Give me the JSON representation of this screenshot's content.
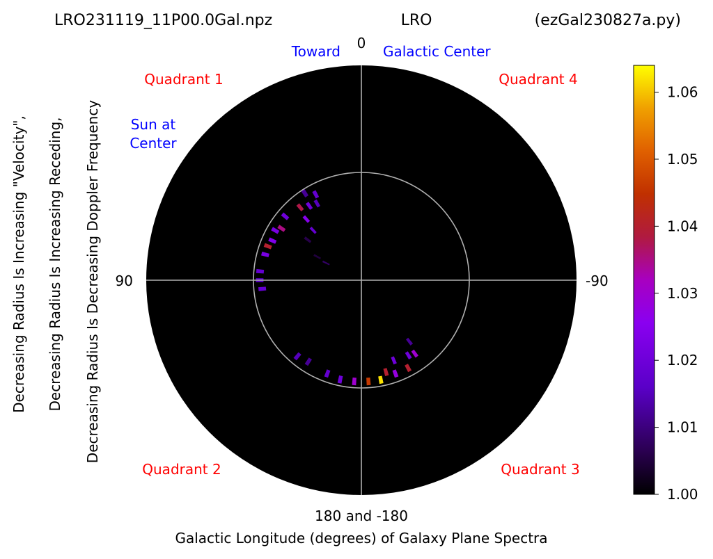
{
  "header": {
    "left": "LRO231119_11P00.0Gal.npz",
    "center": "LRO",
    "right": "(ezGal230827a.py)"
  },
  "axis": {
    "xlabel": "Galactic Longitude (degrees) of Galaxy Plane Spectra",
    "ylabel_lines": [
      "Decreasing Radius Is Increasing \"Velocity\",",
      "Decreasing Radius Is Increasing Receding,",
      "Decreasing Radius Is Decreasing Doppler Frequency"
    ],
    "tick_top": "0",
    "tick_left": "90",
    "tick_right": "-90",
    "tick_bottom": "180 and -180"
  },
  "annotations": {
    "toward": "Toward",
    "galactic_center": "Galactic Center",
    "sun_line1": "Sun at",
    "sun_line2": "Center",
    "quadrant1": "Quadrant 1",
    "quadrant2": "Quadrant 2",
    "quadrant3": "Quadrant 3",
    "quadrant4": "Quadrant 4"
  },
  "colors": {
    "background": "#000000",
    "grid": "#b0b0b0",
    "red_text": "#ff0000",
    "blue_text": "#0000ff"
  },
  "chart_data": {
    "type": "heatmap",
    "projection": "polar",
    "colormap": "gnuplot",
    "colorbar": {
      "min": 1.0,
      "max": 1.064,
      "ticks": [
        "1.00",
        "1.01",
        "1.02",
        "1.03",
        "1.04",
        "1.05",
        "1.06"
      ],
      "tick_values": [
        1.0,
        1.01,
        1.02,
        1.03,
        1.04,
        1.05,
        1.06
      ]
    },
    "inner_circle_radius_fraction": 0.5,
    "grid": true,
    "cells": [
      {
        "longitude": 28,
        "r": 0.47,
        "value": 1.018
      },
      {
        "longitude": 30,
        "r": 0.43,
        "value": 1.015
      },
      {
        "longitude": 33,
        "r": 0.5,
        "value": 1.012
      },
      {
        "longitude": 35,
        "r": 0.44,
        "value": 1.02
      },
      {
        "longitude": 40,
        "r": 0.46,
        "value": 1.038
      },
      {
        "longitude": 42,
        "r": 0.4,
        "value": 1.025
      },
      {
        "longitude": 44,
        "r": 0.34,
        "value": 1.018
      },
      {
        "longitude": 50,
        "r": 0.48,
        "value": 1.02
      },
      {
        "longitude": 53,
        "r": 0.33,
        "value": 1.006
      },
      {
        "longitude": 57,
        "r": 0.46,
        "value": 1.035
      },
      {
        "longitude": 60,
        "r": 0.48,
        "value": 1.022
      },
      {
        "longitude": 62,
        "r": 0.25,
        "value": 1.005
      },
      {
        "longitude": 64,
        "r": 0.2,
        "value": 1.008
      },
      {
        "longitude": 66,
        "r": 0.47,
        "value": 1.024
      },
      {
        "longitude": 70,
        "r": 0.48,
        "value": 1.04
      },
      {
        "longitude": 75,
        "r": 0.48,
        "value": 1.022
      },
      {
        "longitude": 85,
        "r": 0.49,
        "value": 1.018
      },
      {
        "longitude": 90,
        "r": 0.49,
        "value": 1.016
      },
      {
        "longitude": 95,
        "r": 0.48,
        "value": 1.018
      },
      {
        "longitude": 140,
        "r": 0.48,
        "value": 1.015
      },
      {
        "longitude": 147,
        "r": 0.47,
        "value": 1.012
      },
      {
        "longitude": 160,
        "r": 0.48,
        "value": 1.018
      },
      {
        "longitude": 168,
        "r": 0.49,
        "value": 1.02
      },
      {
        "longitude": 176,
        "r": 0.49,
        "value": 1.03
      },
      {
        "longitude": -176,
        "r": 0.49,
        "value": 1.046
      },
      {
        "longitude": -169,
        "r": 0.49,
        "value": 1.062
      },
      {
        "longitude": -165,
        "r": 0.46,
        "value": 1.04
      },
      {
        "longitude": -160,
        "r": 0.48,
        "value": 1.028
      },
      {
        "longitude": -158,
        "r": 0.42,
        "value": 1.02
      },
      {
        "longitude": -152,
        "r": 0.48,
        "value": 1.04
      },
      {
        "longitude": -148,
        "r": 0.43,
        "value": 1.02
      },
      {
        "longitude": -144,
        "r": 0.44,
        "value": 1.03
      },
      {
        "longitude": -142,
        "r": 0.38,
        "value": 1.012
      }
    ]
  }
}
